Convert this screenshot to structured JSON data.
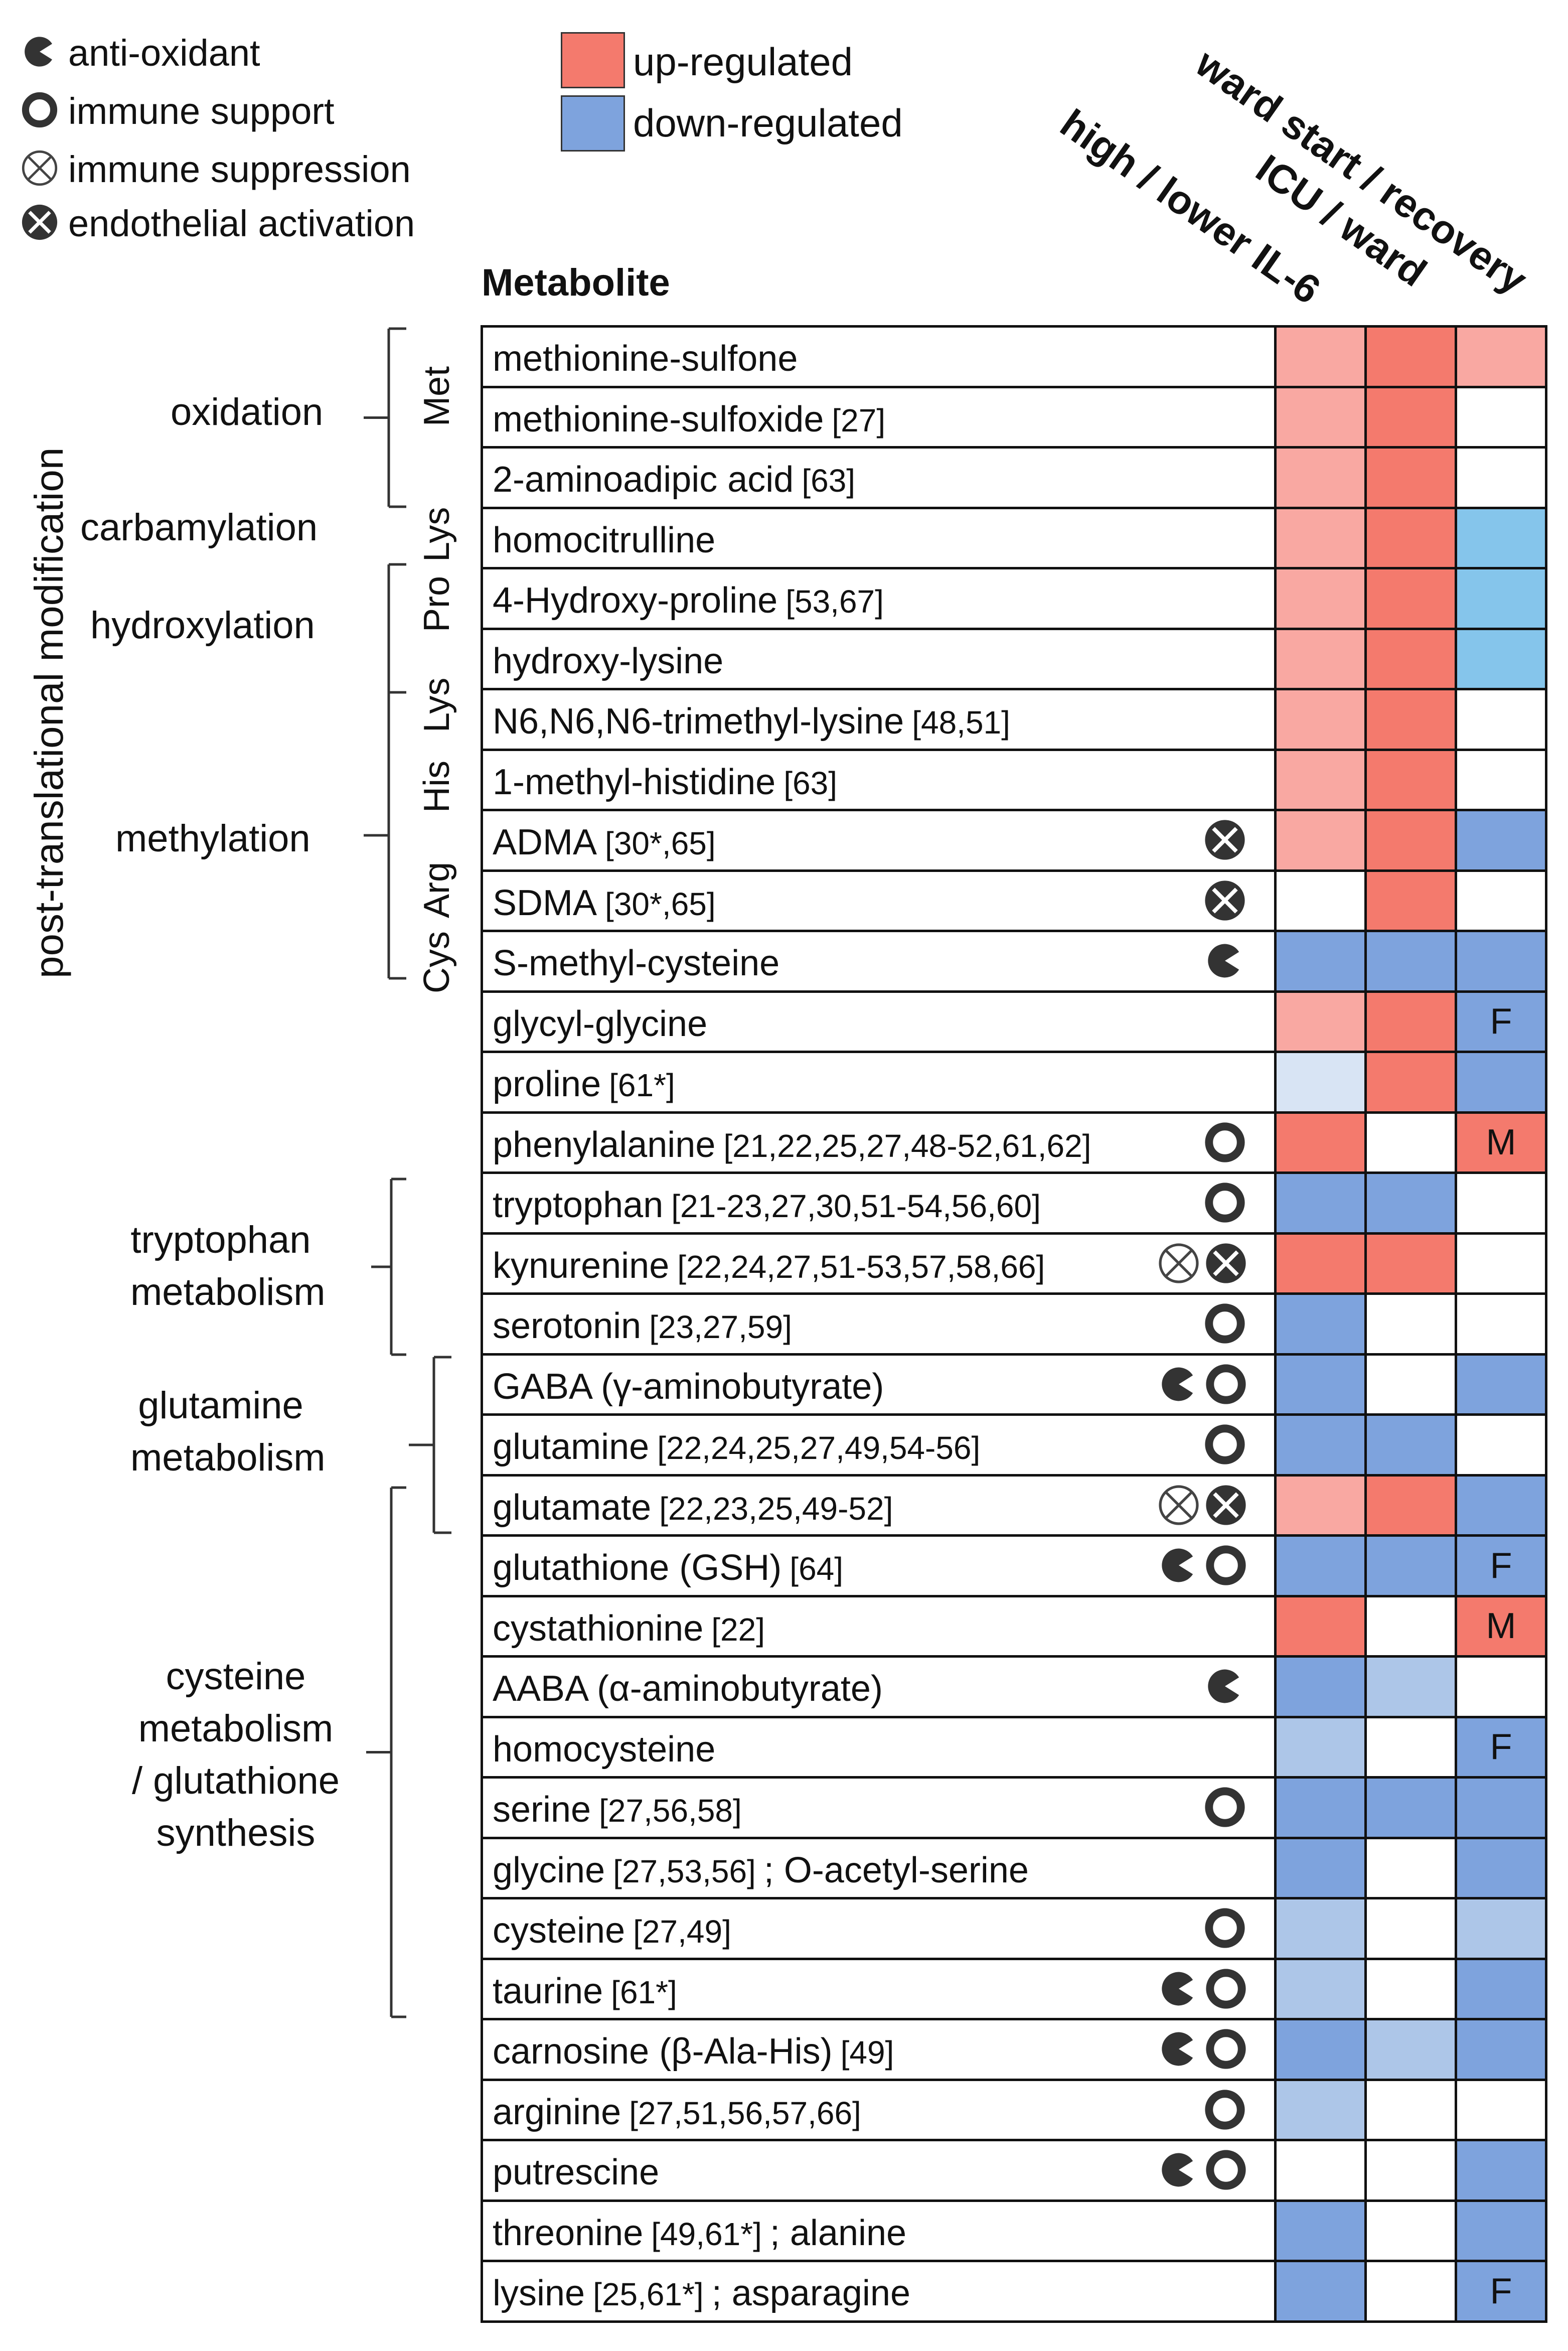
{
  "legend": {
    "symbols": [
      {
        "icon": "antioxidant-icon",
        "label": "anti-oxidant"
      },
      {
        "icon": "immune-support-icon",
        "label": "immune support"
      },
      {
        "icon": "immune-suppression-icon",
        "label": "immune suppression"
      },
      {
        "icon": "endothelial-activation-icon",
        "label": "endothelial activation"
      }
    ],
    "colors": [
      {
        "label": "up-regulated",
        "color": "#f47a6d"
      },
      {
        "label": "down-regulated",
        "color": "#7ea3dd"
      }
    ]
  },
  "columns": [
    "high / lower IL-6",
    "ICU / ward",
    "ward start / recovery"
  ],
  "metabolite_header": "Metabolite",
  "palette": {
    "U": "#f47a6d",
    "u": "#f9a8a2",
    "D": "#7ea3dd",
    "d": "#adc6e8",
    "l": "#d8e4f4",
    "s": "#85c5eb",
    "W": "#ffffff",
    "outline": "#111111"
  },
  "rows": [
    {
      "name": "methionine-sulfone",
      "ref": "",
      "extra": "",
      "icons": [],
      "cells": [
        "u",
        "U",
        "u"
      ],
      "notes": [
        "",
        "",
        ""
      ]
    },
    {
      "name": "methionine-sulfoxide",
      "ref": "[27]",
      "extra": "",
      "icons": [],
      "cells": [
        "u",
        "U",
        "W"
      ],
      "notes": [
        "",
        "",
        ""
      ]
    },
    {
      "name": "2-aminoadipic acid",
      "ref": "[63]",
      "extra": "",
      "icons": [],
      "cells": [
        "u",
        "U",
        "W"
      ],
      "notes": [
        "",
        "",
        ""
      ]
    },
    {
      "name": "homocitrulline",
      "ref": "",
      "extra": "",
      "icons": [],
      "cells": [
        "u",
        "U",
        "s"
      ],
      "notes": [
        "",
        "",
        ""
      ]
    },
    {
      "name": "4-Hydroxy-proline",
      "ref": "[53,67]",
      "extra": "",
      "icons": [],
      "cells": [
        "u",
        "U",
        "s"
      ],
      "notes": [
        "",
        "",
        ""
      ]
    },
    {
      "name": "hydroxy-lysine",
      "ref": "",
      "extra": "",
      "icons": [],
      "cells": [
        "u",
        "U",
        "s"
      ],
      "notes": [
        "",
        "",
        ""
      ]
    },
    {
      "name": "N6,N6,N6-trimethyl-lysine",
      "ref": "[48,51]",
      "extra": "",
      "icons": [],
      "cells": [
        "u",
        "U",
        "W"
      ],
      "notes": [
        "",
        "",
        ""
      ]
    },
    {
      "name": "1-methyl-histidine",
      "ref": "[63]",
      "extra": "",
      "icons": [],
      "cells": [
        "u",
        "U",
        "W"
      ],
      "notes": [
        "",
        "",
        ""
      ]
    },
    {
      "name": "ADMA",
      "ref": "[30*,65]",
      "extra": "",
      "icons": [
        "endothelial-activation-icon"
      ],
      "cells": [
        "u",
        "U",
        "D"
      ],
      "notes": [
        "",
        "",
        ""
      ]
    },
    {
      "name": "SDMA",
      "ref": "[30*,65]",
      "extra": "",
      "icons": [
        "endothelial-activation-icon"
      ],
      "cells": [
        "W",
        "U",
        "W"
      ],
      "notes": [
        "",
        "",
        ""
      ]
    },
    {
      "name": "S-methyl-cysteine",
      "ref": "",
      "extra": "",
      "icons": [
        "antioxidant-icon"
      ],
      "cells": [
        "D",
        "D",
        "D"
      ],
      "notes": [
        "",
        "",
        ""
      ]
    },
    {
      "name": "glycyl-glycine",
      "ref": "",
      "extra": "",
      "icons": [],
      "cells": [
        "u",
        "U",
        "D"
      ],
      "notes": [
        "",
        "",
        "F"
      ]
    },
    {
      "name": "proline",
      "ref": "[61*]",
      "extra": "",
      "icons": [],
      "cells": [
        "l",
        "U",
        "D"
      ],
      "notes": [
        "",
        "",
        ""
      ]
    },
    {
      "name": "phenylalanine",
      "ref": "[21,22,25,27,48-52,61,62]",
      "extra": "",
      "icons": [
        "immune-support-icon"
      ],
      "cells": [
        "U",
        "W",
        "U"
      ],
      "notes": [
        "",
        "",
        "M"
      ]
    },
    {
      "name": "tryptophan",
      "ref": "[21-23,27,30,51-54,56,60]",
      "extra": "",
      "icons": [
        "immune-support-icon"
      ],
      "cells": [
        "D",
        "D",
        "W"
      ],
      "notes": [
        "",
        "",
        ""
      ]
    },
    {
      "name": "kynurenine",
      "ref": "[22,24,27,51-53,57,58,66]",
      "extra": "",
      "icons": [
        "immune-suppression-icon",
        "endothelial-activation-icon"
      ],
      "cells": [
        "U",
        "U",
        "W"
      ],
      "notes": [
        "",
        "",
        ""
      ]
    },
    {
      "name": "serotonin",
      "ref": "[23,27,59]",
      "extra": "",
      "icons": [
        "immune-support-icon"
      ],
      "cells": [
        "D",
        "W",
        "W"
      ],
      "notes": [
        "",
        "",
        ""
      ]
    },
    {
      "name": "GABA (γ-aminobutyrate)",
      "ref": "",
      "extra": "",
      "icons": [
        "antioxidant-icon",
        "immune-support-icon"
      ],
      "cells": [
        "D",
        "W",
        "D"
      ],
      "notes": [
        "",
        "",
        ""
      ]
    },
    {
      "name": "glutamine",
      "ref": "[22,24,25,27,49,54-56]",
      "extra": "",
      "icons": [
        "immune-support-icon"
      ],
      "cells": [
        "D",
        "D",
        "W"
      ],
      "notes": [
        "",
        "",
        ""
      ]
    },
    {
      "name": "glutamate",
      "ref": "[22,23,25,49-52]",
      "extra": "",
      "icons": [
        "immune-suppression-icon",
        "endothelial-activation-icon"
      ],
      "cells": [
        "u",
        "U",
        "D"
      ],
      "notes": [
        "",
        "",
        ""
      ]
    },
    {
      "name": "glutathione (GSH)",
      "ref": "[64]",
      "extra": "",
      "icons": [
        "antioxidant-icon",
        "immune-support-icon"
      ],
      "cells": [
        "D",
        "D",
        "D"
      ],
      "notes": [
        "",
        "",
        "F"
      ]
    },
    {
      "name": "cystathionine",
      "ref": "[22]",
      "extra": "",
      "icons": [],
      "cells": [
        "U",
        "W",
        "U"
      ],
      "notes": [
        "",
        "",
        "M"
      ]
    },
    {
      "name": "AABA (α-aminobutyrate)",
      "ref": "",
      "extra": "",
      "icons": [
        "antioxidant-icon"
      ],
      "cells": [
        "D",
        "d",
        "W"
      ],
      "notes": [
        "",
        "",
        ""
      ]
    },
    {
      "name": "homocysteine",
      "ref": "",
      "extra": "",
      "icons": [],
      "cells": [
        "d",
        "W",
        "D"
      ],
      "notes": [
        "",
        "",
        "F"
      ]
    },
    {
      "name": "serine",
      "ref": "[27,56,58]",
      "extra": "",
      "icons": [
        "immune-support-icon"
      ],
      "cells": [
        "D",
        "D",
        "D"
      ],
      "notes": [
        "",
        "",
        ""
      ]
    },
    {
      "name": "glycine",
      "ref": "[27,53,56]",
      "extra": "; O-acetyl-serine",
      "icons": [],
      "cells": [
        "D",
        "W",
        "D"
      ],
      "notes": [
        "",
        "",
        ""
      ]
    },
    {
      "name": "cysteine",
      "ref": "[27,49]",
      "extra": "",
      "icons": [
        "immune-support-icon"
      ],
      "cells": [
        "d",
        "W",
        "d"
      ],
      "notes": [
        "",
        "",
        ""
      ]
    },
    {
      "name": "taurine",
      "ref": "[61*]",
      "extra": "",
      "icons": [
        "antioxidant-icon",
        "immune-support-icon"
      ],
      "cells": [
        "d",
        "W",
        "D"
      ],
      "notes": [
        "",
        "",
        ""
      ]
    },
    {
      "name": "carnosine (β-Ala-His)",
      "ref": "[49]",
      "extra": "",
      "icons": [
        "antioxidant-icon",
        "immune-support-icon"
      ],
      "cells": [
        "D",
        "d",
        "D"
      ],
      "notes": [
        "",
        "",
        ""
      ]
    },
    {
      "name": "arginine",
      "ref": "[27,51,56,57,66]",
      "extra": "",
      "icons": [
        "immune-support-icon"
      ],
      "cells": [
        "d",
        "W",
        "W"
      ],
      "notes": [
        "",
        "",
        ""
      ]
    },
    {
      "name": "putrescine",
      "ref": "",
      "extra": "",
      "icons": [
        "antioxidant-icon",
        "immune-support-icon"
      ],
      "cells": [
        "W",
        "W",
        "D"
      ],
      "notes": [
        "",
        "",
        ""
      ]
    },
    {
      "name": "threonine",
      "ref": "[49,61*]",
      "extra": "; alanine",
      "icons": [],
      "cells": [
        "D",
        "W",
        "D"
      ],
      "notes": [
        "",
        "",
        ""
      ]
    },
    {
      "name": "lysine",
      "ref": "[25,61*]",
      "extra": "; asparagine",
      "icons": [],
      "cells": [
        "D",
        "W",
        "D"
      ],
      "notes": [
        "",
        "",
        "F"
      ]
    }
  ],
  "side_title": "post-translational modification",
  "ptm_groups": [
    "oxidation",
    "carbamylation",
    "hydroxylation",
    "methylation"
  ],
  "amino_acids": [
    "Met",
    "Lys",
    "Pro",
    "Lys",
    "His",
    "Arg",
    "Cys"
  ],
  "pathway_groups": [
    {
      "line1": "tryptophan",
      "line2": "metabolism",
      "line3": ""
    },
    {
      "line1": "glutamine",
      "line2": "metabolism",
      "line3": ""
    },
    {
      "line1": "cysteine",
      "line2": "metabolism",
      "line3": "/ glutathione",
      "line4": "synthesis"
    }
  ]
}
